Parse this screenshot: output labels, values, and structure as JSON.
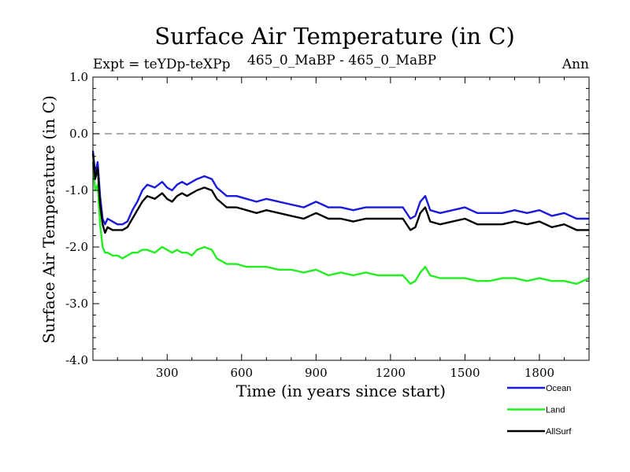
{
  "chart_data": {
    "type": "line",
    "title": "Surface Air Temperature (in C)",
    "subtitle_left": "Expt = teYDp-teXPp",
    "subtitle_center": "465_0_MaBP - 465_0_MaBP",
    "subtitle_right": "Ann",
    "xlabel": "Time (in years since start)",
    "ylabel": "Surface Air Temperature (in C)",
    "xlim": [
      1,
      2000
    ],
    "ylim": [
      -4.0,
      1.0
    ],
    "x_ticks": [
      300,
      600,
      900,
      1200,
      1500,
      1800
    ],
    "x_tick_labels": [
      "300",
      "600",
      "900",
      "1200",
      "1500",
      "1800"
    ],
    "y_ticks": [
      1.0,
      0.0,
      -1.0,
      -2.0,
      -3.0,
      -4.0
    ],
    "y_tick_labels": [
      "1.0",
      "0.0",
      "-1.0",
      "-2.0",
      "-3.0",
      "-4.0"
    ],
    "reference_line": {
      "y": 0.0,
      "style": "dashed"
    },
    "series": [
      {
        "name": "Ocean",
        "color": "#1a1adc",
        "x": [
          1,
          10,
          20,
          30,
          40,
          50,
          60,
          80,
          100,
          120,
          140,
          160,
          180,
          200,
          220,
          250,
          280,
          300,
          320,
          340,
          360,
          380,
          400,
          420,
          450,
          480,
          500,
          540,
          580,
          620,
          660,
          700,
          750,
          800,
          850,
          900,
          950,
          1000,
          1050,
          1100,
          1150,
          1200,
          1250,
          1280,
          1300,
          1320,
          1340,
          1360,
          1400,
          1450,
          1500,
          1550,
          1600,
          1650,
          1700,
          1750,
          1800,
          1850,
          1900,
          1950,
          2000
        ],
        "values": [
          -0.3,
          -0.7,
          -0.5,
          -1.1,
          -1.5,
          -1.6,
          -1.5,
          -1.55,
          -1.6,
          -1.6,
          -1.55,
          -1.35,
          -1.2,
          -1.0,
          -0.9,
          -0.95,
          -0.85,
          -0.95,
          -1.0,
          -0.9,
          -0.85,
          -0.9,
          -0.85,
          -0.8,
          -0.75,
          -0.8,
          -0.95,
          -1.1,
          -1.1,
          -1.15,
          -1.2,
          -1.15,
          -1.2,
          -1.25,
          -1.3,
          -1.2,
          -1.3,
          -1.3,
          -1.35,
          -1.3,
          -1.3,
          -1.3,
          -1.3,
          -1.5,
          -1.45,
          -1.2,
          -1.1,
          -1.35,
          -1.4,
          -1.35,
          -1.3,
          -1.4,
          -1.4,
          -1.4,
          -1.35,
          -1.4,
          -1.35,
          -1.45,
          -1.4,
          -1.5,
          -1.5
        ]
      },
      {
        "name": "Land",
        "color": "#22ee22",
        "x": [
          1,
          10,
          20,
          30,
          40,
          50,
          60,
          80,
          100,
          120,
          140,
          160,
          180,
          200,
          220,
          250,
          280,
          300,
          320,
          340,
          360,
          380,
          400,
          420,
          450,
          480,
          500,
          540,
          580,
          620,
          660,
          700,
          750,
          800,
          850,
          900,
          950,
          1000,
          1050,
          1100,
          1150,
          1200,
          1250,
          1280,
          1300,
          1320,
          1340,
          1360,
          1400,
          1450,
          1500,
          1550,
          1600,
          1650,
          1700,
          1750,
          1800,
          1850,
          1900,
          1950,
          2000
        ],
        "values": [
          -0.5,
          -1.0,
          -0.9,
          -1.6,
          -2.0,
          -2.1,
          -2.1,
          -2.15,
          -2.15,
          -2.2,
          -2.15,
          -2.1,
          -2.1,
          -2.05,
          -2.05,
          -2.1,
          -2.0,
          -2.05,
          -2.1,
          -2.05,
          -2.1,
          -2.1,
          -2.15,
          -2.05,
          -2.0,
          -2.05,
          -2.2,
          -2.3,
          -2.3,
          -2.35,
          -2.35,
          -2.35,
          -2.4,
          -2.4,
          -2.45,
          -2.4,
          -2.5,
          -2.45,
          -2.5,
          -2.45,
          -2.5,
          -2.5,
          -2.5,
          -2.65,
          -2.6,
          -2.45,
          -2.35,
          -2.5,
          -2.55,
          -2.55,
          -2.55,
          -2.6,
          -2.6,
          -2.55,
          -2.55,
          -2.6,
          -2.55,
          -2.6,
          -2.6,
          -2.65,
          -2.55
        ]
      },
      {
        "name": "AllSurf",
        "color": "#000000",
        "x": [
          1,
          10,
          20,
          30,
          40,
          50,
          60,
          80,
          100,
          120,
          140,
          160,
          180,
          200,
          220,
          250,
          280,
          300,
          320,
          340,
          360,
          380,
          400,
          420,
          450,
          480,
          500,
          540,
          580,
          620,
          660,
          700,
          750,
          800,
          850,
          900,
          950,
          1000,
          1050,
          1100,
          1150,
          1200,
          1250,
          1280,
          1300,
          1320,
          1340,
          1360,
          1400,
          1450,
          1500,
          1550,
          1600,
          1650,
          1700,
          1750,
          1800,
          1850,
          1900,
          1950,
          2000
        ],
        "values": [
          -0.35,
          -0.8,
          -0.6,
          -1.25,
          -1.6,
          -1.75,
          -1.65,
          -1.7,
          -1.7,
          -1.7,
          -1.65,
          -1.5,
          -1.35,
          -1.2,
          -1.1,
          -1.15,
          -1.05,
          -1.15,
          -1.2,
          -1.1,
          -1.05,
          -1.1,
          -1.05,
          -1.0,
          -0.95,
          -1.0,
          -1.15,
          -1.3,
          -1.3,
          -1.35,
          -1.4,
          -1.35,
          -1.4,
          -1.45,
          -1.5,
          -1.4,
          -1.5,
          -1.5,
          -1.55,
          -1.5,
          -1.5,
          -1.5,
          -1.5,
          -1.7,
          -1.65,
          -1.4,
          -1.3,
          -1.55,
          -1.6,
          -1.55,
          -1.5,
          -1.6,
          -1.6,
          -1.6,
          -1.55,
          -1.6,
          -1.55,
          -1.65,
          -1.6,
          -1.7,
          -1.7
        ]
      }
    ],
    "legend": {
      "position": "bottom-right",
      "entries": [
        "Ocean",
        "Land",
        "AllSurf"
      ]
    }
  }
}
